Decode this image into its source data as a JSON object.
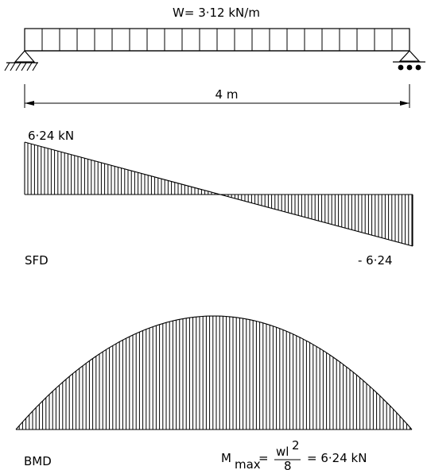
{
  "load": {
    "text": "W= 3·12 kN/m"
  },
  "span": {
    "text": "4 m"
  },
  "sfd": {
    "top_value": "6·24 kN",
    "bottom_value": "- 6·24",
    "label": "SFD"
  },
  "bmd": {
    "label": "BMD",
    "mmax_prefix": "M",
    "mmax_sub": "max",
    "mmax_eq": "=",
    "formula_num_base": "wl",
    "formula_num_sup": "2",
    "formula_den": "8",
    "mmax_result": "= 6·24 kN"
  },
  "icons": {
    "left_support": "pin-support-icon",
    "right_support": "roller-support-icon"
  }
}
